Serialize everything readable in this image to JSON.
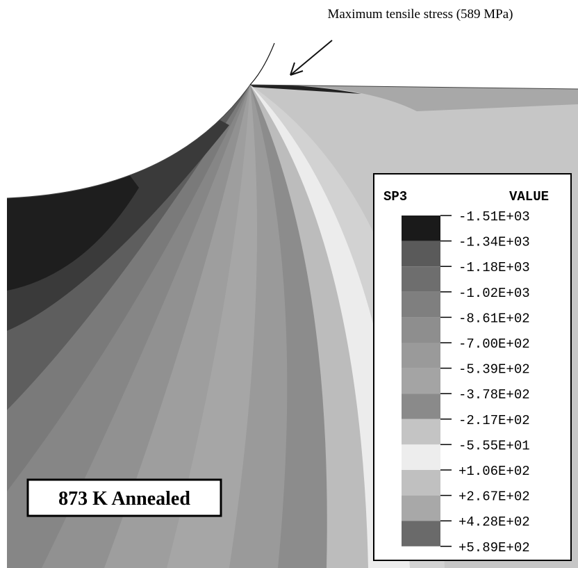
{
  "annotation": "Maximum tensile stress (589 MPa)",
  "legend": {
    "title": "SP3",
    "header": "VALUE",
    "labels": [
      "-1.51E+03",
      "-1.34E+03",
      "-1.18E+03",
      "-1.02E+03",
      "-8.61E+02",
      "-7.00E+02",
      "-5.39E+02",
      "-3.78E+02",
      "-2.17E+02",
      "-5.55E+01",
      "+1.06E+02",
      "+2.67E+02",
      "+4.28E+02",
      "+5.89E+02"
    ]
  },
  "label": "873 K Annealed"
}
